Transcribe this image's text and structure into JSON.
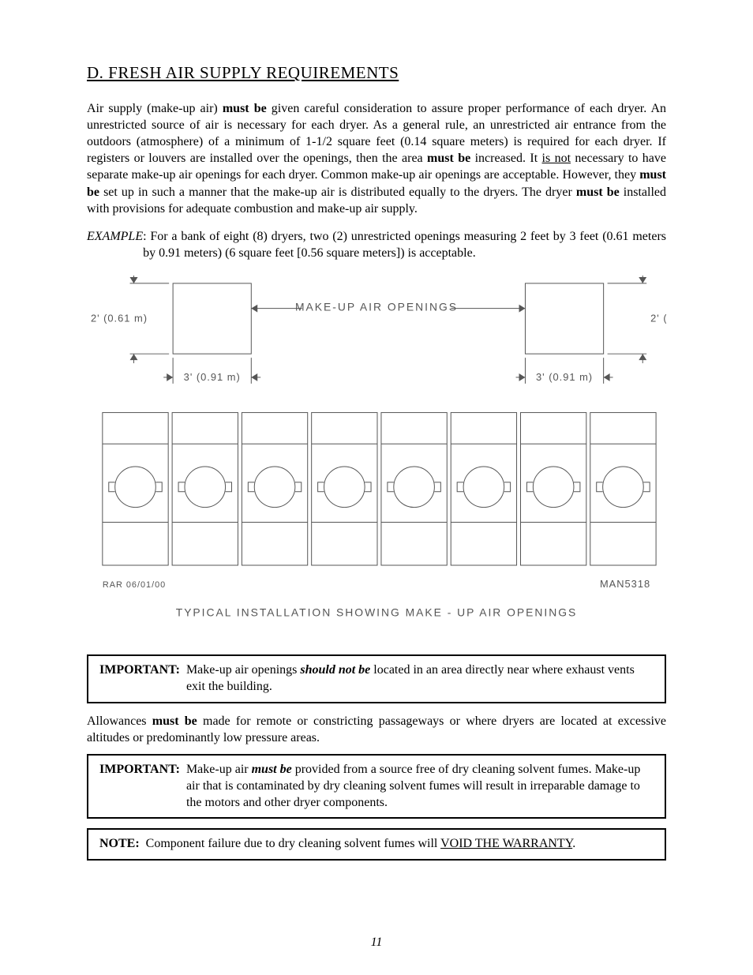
{
  "heading": "D.  FRESH AIR SUPPLY REQUIREMENTS",
  "paragraphs": {
    "p1_pre": "Air supply (make-up air) ",
    "p1_mb1": "must be",
    "p1_mid1": " given careful consideration to assure proper performance of each dryer.  An unrestricted source of air is necessary for each dryer.  As a general rule, an unrestricted air entrance from the outdoors (atmosphere) of a minimum of 1-1/2 square feet (0.14 square meters) is required for each dryer.  If registers or louvers are installed over the openings, then the area ",
    "p1_mb2": "must be",
    "p1_mid2": " increased.  It ",
    "p1_isnot": "is not",
    "p1_mid3": " necessary to have separate make-up air openings for each dryer.  Common make-up air openings are acceptable.  However, they ",
    "p1_mb3": "must be",
    "p1_mid4": " set up in such a manner that the make-up air is distributed equally to the dryers.  The dryer ",
    "p1_mb4": "must be",
    "p1_end": " installed with provisions for adequate combustion and make-up air supply.",
    "ex_label": "EXAMPLE",
    "ex_text": ": For a bank of eight (8) dryers, two (2) unrestricted openings measuring 2 feet by 3 feet (0.61 meters by 0.91 meters) (6 square feet [0.56 square meters]) is acceptable.",
    "p2_pre": "Allowances ",
    "p2_mb": "must be",
    "p2_end": " made for remote or constricting passageways or where dryers are located at excessive altitudes or predominantly low pressure areas."
  },
  "diagram": {
    "label_top": "MAKE-UP AIR OPENINGS",
    "dim_h": "2' (0.61 m)",
    "dim_w": "3' (0.91 m)",
    "footer_left": "RAR 06/01/00",
    "footer_right": "MAN5318",
    "title": "TYPICAL INSTALLATION SHOWING MAKE - UP AIR OPENINGS",
    "stroke": "#555555",
    "stroke_thin": 1,
    "dryer_count": 8
  },
  "boxes": {
    "imp_label": "IMPORTANT:",
    "note_label": "NOTE:",
    "imp1_pre": "Make-up air openings ",
    "imp1_em": "should not be",
    "imp1_end": " located in an area directly near where exhaust vents exit the building.",
    "imp2_pre": "Make-up air ",
    "imp2_em": "must be",
    "imp2_end": " provided from a source free of dry cleaning solvent fumes. Make-up air that is contaminated by dry cleaning solvent fumes will result in irreparable damage to the motors and other dryer components.",
    "note_pre": "Component failure due to dry cleaning solvent fumes will ",
    "note_u": "VOID THE WARRANTY",
    "note_end": "."
  },
  "page_number": "11"
}
